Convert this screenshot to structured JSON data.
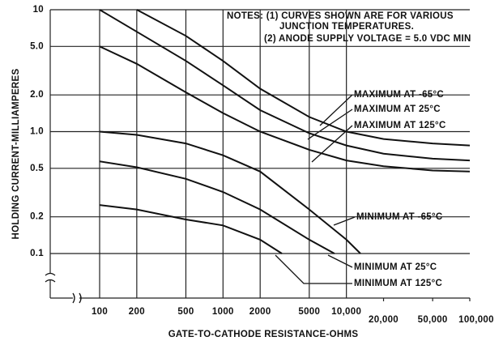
{
  "chart_data": {
    "type": "line",
    "xscale": "log",
    "yscale": "log",
    "grid": true,
    "xlabel": "GATE-TO-CATHODE RESISTANCE-OHMS",
    "ylabel": "HOLDING CURRENT-MILLIAMPERES",
    "annotations": [
      "NOTES: (1) CURVES SHOWN ARE FOR VARIOUS",
      "JUNCTION TEMPERATURES.",
      "(2) ANODE SUPPLY VOLTAGE = 5.0 VDC MIN"
    ],
    "xlim": [
      100,
      100000
    ],
    "xticks": [
      100,
      200,
      500,
      1000,
      2000,
      5000,
      {
        "value": 10000,
        "label": "10,000"
      },
      {
        "value": 20000,
        "label": "20,000"
      },
      {
        "value": 50000,
        "label": "50,000"
      },
      {
        "value": 100000,
        "label": "100,000"
      }
    ],
    "ylim": [
      0.1,
      10
    ],
    "yticks": [
      10,
      {
        "value": 5,
        "label": "5.0"
      },
      {
        "value": 2,
        "label": "2.0"
      },
      {
        "value": 1,
        "label": "1.0"
      },
      0.5,
      0.2,
      0.1
    ],
    "series": [
      {
        "name": "MAXIMUM AT -65°C",
        "color": "#111111",
        "x": [
          200,
          500,
          1000,
          2000,
          5000,
          10000,
          20000,
          50000,
          100000
        ],
        "values": [
          10,
          6.1,
          3.8,
          2.25,
          1.32,
          1.0,
          0.87,
          0.8,
          0.77
        ]
      },
      {
        "name": "MAXIMUM AT 25°C",
        "color": "#111111",
        "x": [
          100,
          200,
          500,
          1000,
          2000,
          5000,
          10000,
          20000,
          50000,
          100000
        ],
        "values": [
          10,
          6.6,
          3.8,
          2.4,
          1.5,
          0.97,
          0.77,
          0.66,
          0.6,
          0.58
        ]
      },
      {
        "name": "MAXIMUM AT 125°C",
        "color": "#111111",
        "x": [
          100,
          200,
          500,
          1000,
          2000,
          5000,
          10000,
          20000,
          50000,
          100000
        ],
        "values": [
          5.0,
          3.6,
          2.1,
          1.42,
          1.0,
          0.71,
          0.58,
          0.52,
          0.48,
          0.47
        ]
      },
      {
        "name": "MINIMUM AT -65°C",
        "color": "#111111",
        "x": [
          100,
          200,
          500,
          1000,
          2000,
          5000,
          10000,
          13000
        ],
        "values": [
          1.0,
          0.94,
          0.8,
          0.64,
          0.47,
          0.23,
          0.13,
          0.1
        ]
      },
      {
        "name": "MINIMUM AT 25°C",
        "color": "#111111",
        "x": [
          100,
          200,
          500,
          1000,
          2000,
          5000,
          8000
        ],
        "values": [
          0.57,
          0.51,
          0.41,
          0.32,
          0.23,
          0.13,
          0.1
        ]
      },
      {
        "name": "MINIMUM AT 125°C",
        "color": "#111111",
        "x": [
          100,
          200,
          500,
          1000,
          2000,
          3000
        ],
        "values": [
          0.25,
          0.23,
          0.19,
          0.17,
          0.13,
          0.1
        ]
      }
    ]
  }
}
